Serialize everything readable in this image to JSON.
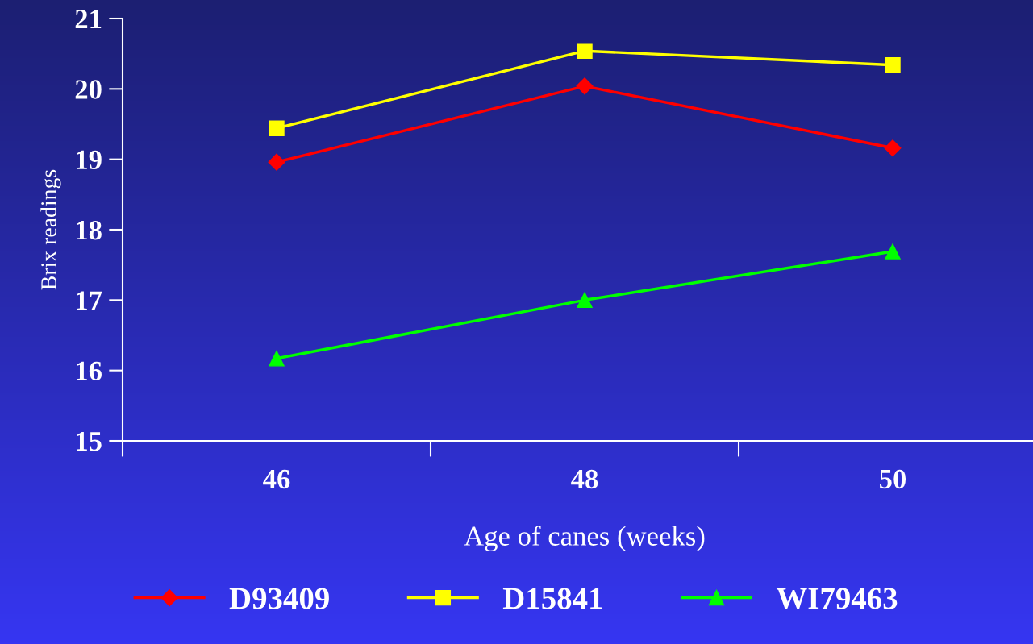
{
  "chart_data": {
    "type": "line",
    "xlabel": "Age of canes (weeks)",
    "ylabel": "Brix readings",
    "categories": [
      "46",
      "48",
      "50"
    ],
    "series": [
      {
        "name": "D93409",
        "color": "#ff0000",
        "marker": "diamond",
        "values": [
          18.96,
          20.04,
          19.16
        ]
      },
      {
        "name": "D15841",
        "color": "#ffff00",
        "marker": "square",
        "values": [
          19.44,
          20.54,
          20.34
        ]
      },
      {
        "name": "WI79463",
        "color": "#00ff00",
        "marker": "triangle",
        "values": [
          16.17,
          17.0,
          17.69
        ]
      }
    ],
    "ylim": [
      15,
      21
    ],
    "yticks": [
      15,
      16,
      17,
      18,
      19,
      20,
      21
    ],
    "grid": false,
    "legend": "bottom",
    "line_style": "solid"
  }
}
